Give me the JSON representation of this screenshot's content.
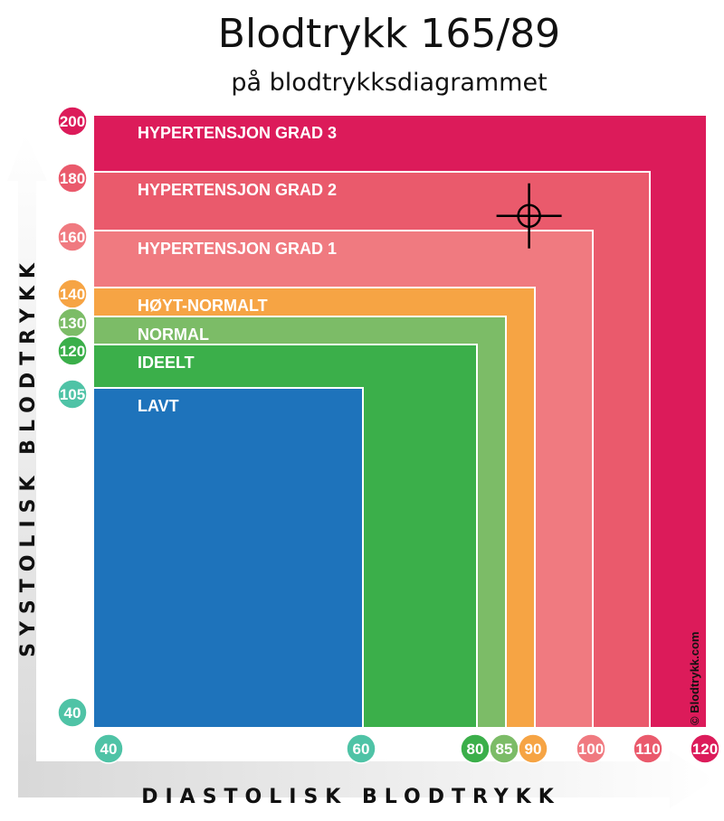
{
  "chart_data": {
    "type": "area",
    "title": "Blodtrykk 165/89",
    "subtitle": "på blodtrykksdiagrammet",
    "xlabel": "DIASTOLISK BLODTRYKK",
    "ylabel": "SYSTOLISK BLODTRYKK",
    "zones": [
      {
        "name": "HYPERTENSJON GRAD 3",
        "max_systolic": 200,
        "max_diastolic": 120,
        "color": "#dc1b5a"
      },
      {
        "name": "HYPERTENSJON GRAD 2",
        "max_systolic": 180,
        "max_diastolic": 110,
        "color": "#ea5a6c"
      },
      {
        "name": "HYPERTENSJON GRAD 1",
        "max_systolic": 160,
        "max_diastolic": 100,
        "color": "#f07a80"
      },
      {
        "name": "HØYT-NORMALT",
        "max_systolic": 140,
        "max_diastolic": 90,
        "color": "#f6a444"
      },
      {
        "name": "NORMAL",
        "max_systolic": 130,
        "max_diastolic": 85,
        "color": "#7cbc67"
      },
      {
        "name": "IDEELT",
        "max_systolic": 120,
        "max_diastolic": 80,
        "color": "#3baf4a"
      },
      {
        "name": "LAVT",
        "max_systolic": 105,
        "max_diastolic": 60,
        "color": "#1e73bb"
      }
    ],
    "y_ticks": [
      {
        "label": "200",
        "value": 200,
        "color": "#dc1b5a"
      },
      {
        "label": "180",
        "value": 180,
        "color": "#ea5a6c"
      },
      {
        "label": "160",
        "value": 160,
        "color": "#f07a80"
      },
      {
        "label": "140",
        "value": 140,
        "color": "#f6a444"
      },
      {
        "label": "130",
        "value": 130,
        "color": "#7cbc67"
      },
      {
        "label": "120",
        "value": 120,
        "color": "#3baf4a"
      },
      {
        "label": "105",
        "value": 105,
        "color": "#4fc3a6"
      },
      {
        "label": "40",
        "value": 40,
        "color": "#4fc3a6"
      }
    ],
    "x_ticks": [
      {
        "label": "40",
        "value": 40,
        "color": "#4fc3a6"
      },
      {
        "label": "60",
        "value": 60,
        "color": "#4fc3a6"
      },
      {
        "label": "80",
        "value": 80,
        "color": "#3baf4a"
      },
      {
        "label": "85",
        "value": 85,
        "color": "#7cbc67"
      },
      {
        "label": "90",
        "value": 90,
        "color": "#f6a444"
      },
      {
        "label": "100",
        "value": 100,
        "color": "#f07a80"
      },
      {
        "label": "110",
        "value": 110,
        "color": "#ea5a6c"
      },
      {
        "label": "120",
        "value": 120,
        "color": "#dc1b5a"
      }
    ],
    "marker": {
      "systolic": 165,
      "diastolic": 89
    },
    "credit": "© Blodtrykk.com"
  }
}
